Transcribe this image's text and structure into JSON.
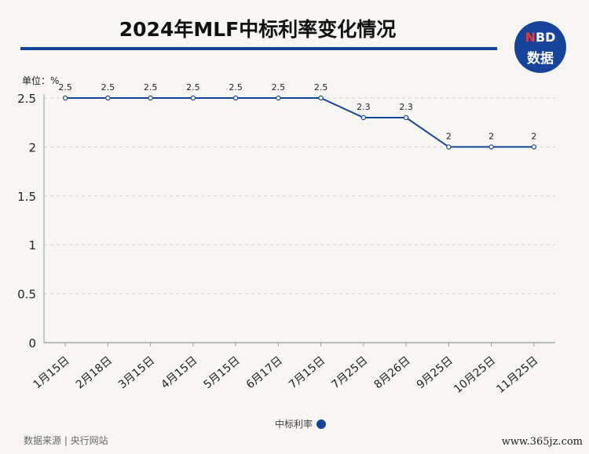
{
  "header": {
    "title": "2024年MLF中标利率变化情况",
    "logo_top_red": "N",
    "logo_top_rest": "BD",
    "logo_bottom": "数据"
  },
  "unit_label": "单位：%",
  "legend_label": "中标利率",
  "source": "数据来源 | 央行网站",
  "website": "www.365jz.com",
  "colors": {
    "accent": "#16449a",
    "background": "#f8f6f3"
  },
  "chart_data": {
    "type": "line",
    "categories": [
      "1月15日",
      "2月18日",
      "3月15日",
      "4月15日",
      "5月15日",
      "6月17日",
      "7月15日",
      "7月25日",
      "8月26日",
      "9月25日",
      "10月25日",
      "11月25日"
    ],
    "series": [
      {
        "name": "中标利率",
        "values": [
          2.5,
          2.5,
          2.5,
          2.5,
          2.5,
          2.5,
          2.5,
          2.3,
          2.3,
          2.0,
          2.0,
          2.0
        ]
      }
    ],
    "data_labels": [
      "2.5",
      "2.5",
      "2.5",
      "2.5",
      "2.5",
      "2.5",
      "2.5",
      "2.3",
      "2.3",
      "2",
      "2",
      "2"
    ],
    "yticks": [
      "0",
      "0.5",
      "1",
      "1.5",
      "2",
      "2.5"
    ],
    "ylim": [
      0,
      2.5
    ],
    "grid": true,
    "legend_position": "bottom"
  }
}
